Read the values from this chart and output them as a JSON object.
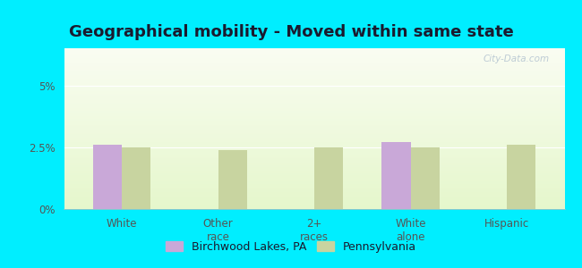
{
  "title": "Geographical mobility - Moved within same state",
  "categories": [
    "White",
    "Other\nrace",
    "2+\nraces",
    "White\nalone",
    "Hispanic"
  ],
  "birchwood_values": [
    2.6,
    0,
    0,
    2.7,
    0
  ],
  "pennsylvania_values": [
    2.5,
    2.4,
    2.5,
    2.5,
    2.6
  ],
  "birchwood_color": "#c9a8d8",
  "pennsylvania_color": "#c8d4a0",
  "ylim": [
    0,
    6.5
  ],
  "ytick_positions": [
    0,
    2.5,
    5.0
  ],
  "ytick_labels": [
    "0%",
    "2.5%",
    "5%"
  ],
  "bg_outer": "#00eeff",
  "bg_chart": "#e8f4e2",
  "legend_label1": "Birchwood Lakes, PA",
  "legend_label2": "Pennsylvania",
  "bar_width": 0.3,
  "title_fontsize": 13,
  "tick_fontsize": 8.5,
  "legend_fontsize": 9,
  "title_color": "#1a1a2e",
  "tick_color": "#555555",
  "watermark": "City-Data.com"
}
